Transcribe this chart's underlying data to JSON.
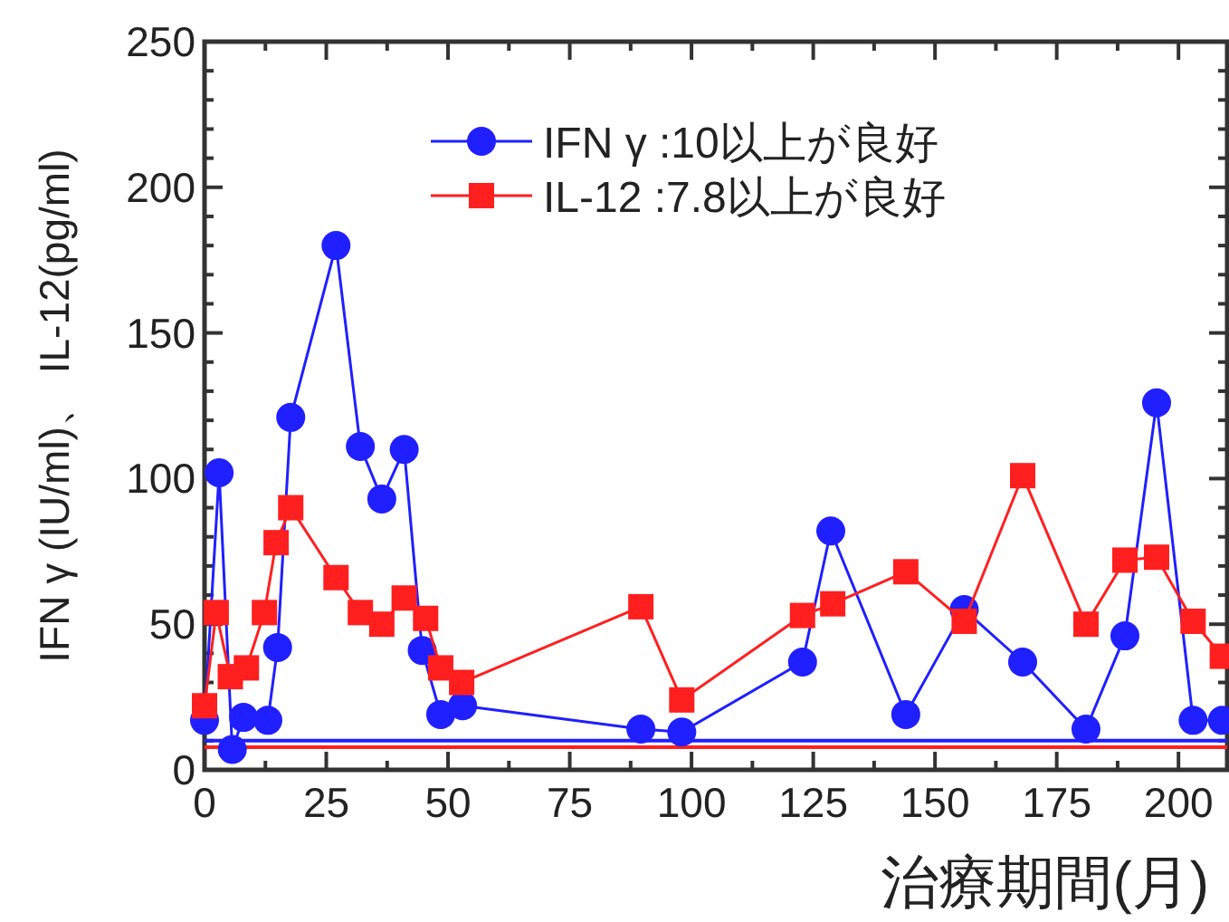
{
  "chart_data": {
    "type": "line",
    "xlabel": "治療期間(月)",
    "ylabel": "IFN γ (IU/ml)、 IL-12(pg/ml)",
    "series": [
      {
        "name": "IFN γ :10以上が良好",
        "color": "#1f1fff",
        "marker": "circle",
        "x": [
          0,
          3,
          5.7,
          8,
          13,
          15,
          17.7,
          27,
          32,
          36.4,
          41,
          44.7,
          48.5,
          53,
          89.6,
          98,
          122.8,
          128.6,
          144,
          156,
          168,
          181,
          189,
          195.5,
          203,
          209
        ],
        "values": [
          17,
          102,
          7,
          18,
          17,
          42,
          121,
          180,
          111,
          93,
          110,
          41,
          19,
          22,
          14,
          13,
          37,
          82,
          19,
          55,
          37,
          14,
          46,
          126,
          17,
          17
        ]
      },
      {
        "name": "IL-12 :7.8以上が良好",
        "color": "#ff1f1f",
        "marker": "square",
        "x": [
          0,
          2.4,
          5.3,
          8.6,
          12.3,
          14.7,
          17.7,
          27,
          32,
          36.4,
          41,
          45.4,
          48.5,
          52.8,
          89.6,
          98,
          122.8,
          129,
          144,
          156,
          168,
          181,
          189,
          195.5,
          203,
          209
        ],
        "values": [
          22,
          54,
          32,
          35,
          54,
          78,
          90,
          66,
          54,
          50,
          59,
          52,
          35,
          30,
          56,
          24,
          53,
          57,
          68,
          51,
          101,
          50,
          72,
          73,
          51,
          39
        ]
      }
    ],
    "ref_lines": [
      {
        "axis": "y",
        "value": 10,
        "color": "#1f1fff"
      },
      {
        "axis": "y",
        "value": 7.8,
        "color": "#ff1f1f"
      }
    ],
    "xlim": [
      0,
      210
    ],
    "xticks": [
      0,
      {
        "value": 12.5,
        "label": null
      },
      25,
      {
        "value": 37.5,
        "label": null
      },
      50,
      {
        "value": 62.5,
        "label": null
      },
      75,
      {
        "value": 87.5,
        "label": null
      },
      100,
      {
        "value": 112.5,
        "label": null
      },
      125,
      {
        "value": 137.5,
        "label": null
      },
      150,
      {
        "value": 162.5,
        "label": null
      },
      175,
      {
        "value": 187.5,
        "label": null
      },
      200
    ],
    "ylim": [
      0,
      250
    ],
    "yticks": [
      0,
      {
        "value": 10,
        "label": null
      },
      {
        "value": 20,
        "label": null
      },
      {
        "value": 30,
        "label": null
      },
      {
        "value": 40,
        "label": null
      },
      50,
      {
        "value": 60,
        "label": null
      },
      {
        "value": 70,
        "label": null
      },
      {
        "value": 80,
        "label": null
      },
      {
        "value": 90,
        "label": null
      },
      100,
      {
        "value": 110,
        "label": null
      },
      {
        "value": 120,
        "label": null
      },
      {
        "value": 130,
        "label": null
      },
      {
        "value": 140,
        "label": null
      },
      150,
      {
        "value": 160,
        "label": null
      },
      {
        "value": 170,
        "label": null
      },
      {
        "value": 180,
        "label": null
      },
      {
        "value": 190,
        "label": null
      },
      200,
      {
        "value": 210,
        "label": null
      },
      {
        "value": 220,
        "label": null
      },
      {
        "value": 230,
        "label": null
      },
      {
        "value": 240,
        "label": null
      },
      250
    ],
    "grid": false,
    "legend": "top right"
  }
}
